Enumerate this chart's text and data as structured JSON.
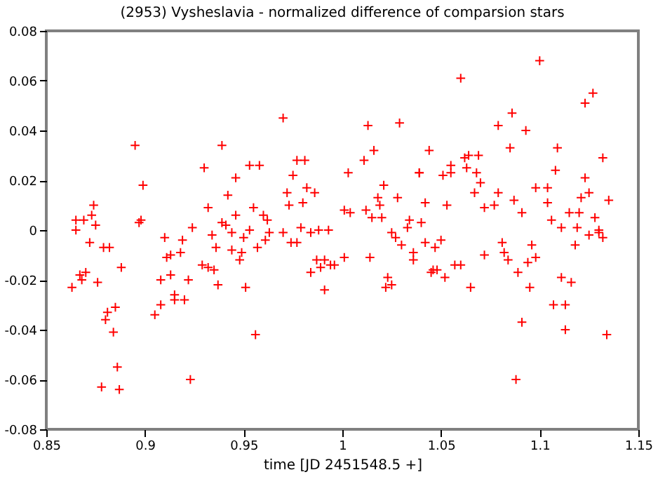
{
  "chart_data": {
    "type": "scatter",
    "title": "(2953) Vysheslavia - normalized difference of comparsion stars",
    "xlabel": "time [JD 2451548.5 +]",
    "x": [
      0.863,
      0.865,
      0.865,
      0.869,
      0.873,
      0.874,
      0.875,
      0.872,
      0.867,
      0.868,
      0.87,
      0.876,
      0.879,
      0.882,
      0.888,
      0.881,
      0.88,
      0.885,
      0.884,
      0.886,
      0.878,
      0.887,
      0.895,
      0.899,
      0.897,
      0.898,
      0.905,
      0.908,
      0.908,
      0.91,
      0.911,
      0.913,
      0.913,
      0.915,
      0.915,
      0.92,
      0.922,
      0.918,
      0.919,
      0.923,
      0.924,
      0.929,
      0.932,
      0.935,
      0.937,
      0.93,
      0.932,
      0.934,
      0.936,
      0.939,
      0.939,
      0.941,
      0.942,
      0.944,
      0.944,
      0.946,
      0.946,
      0.948,
      0.949,
      0.95,
      0.951,
      0.953,
      0.953,
      0.955,
      0.958,
      0.96,
      0.962,
      0.957,
      0.961,
      0.956,
      0.963,
      0.97,
      0.972,
      0.973,
      0.975,
      0.977,
      0.981,
      0.97,
      0.974,
      0.977,
      0.979,
      0.98,
      0.982,
      0.984,
      0.986,
      0.988,
      0.993,
      0.987,
      0.989,
      0.984,
      0.991,
      0.994,
      0.996,
      0.991,
      1.001,
      1.001,
      1.004,
      1.003,
      1.011,
      1.012,
      1.013,
      1.014,
      1.015,
      1.016,
      1.018,
      1.019,
      1.02,
      1.021,
      1.023,
      1.022,
      1.025,
      1.025,
      1.027,
      1.028,
      1.029,
      1.03,
      1.034,
      1.033,
      1.036,
      1.036,
      1.039,
      1.039,
      1.04,
      1.042,
      1.042,
      1.044,
      1.045,
      1.046,
      1.048,
      1.047,
      1.05,
      1.051,
      1.052,
      1.053,
      1.055,
      1.055,
      1.057,
      1.06,
      1.06,
      1.062,
      1.063,
      1.064,
      1.065,
      1.068,
      1.067,
      1.069,
      1.07,
      1.072,
      1.072,
      1.077,
      1.079,
      1.079,
      1.081,
      1.082,
      1.084,
      1.085,
      1.086,
      1.087,
      1.088,
      1.089,
      1.091,
      1.091,
      1.093,
      1.094,
      1.095,
      1.096,
      1.098,
      1.098,
      1.1,
      1.104,
      1.104,
      1.106,
      1.107,
      1.108,
      1.109,
      1.111,
      1.111,
      1.113,
      1.113,
      1.115,
      1.116,
      1.118,
      1.119,
      1.12,
      1.121,
      1.123,
      1.123,
      1.125,
      1.125,
      1.127,
      1.128,
      1.13,
      1.13,
      1.132,
      1.132,
      1.134,
      1.135
    ],
    "series": [
      {
        "color": "#ff0000",
        "values": [
          -0.023,
          0.0,
          0.004,
          0.004,
          0.006,
          0.01,
          0.002,
          -0.005,
          -0.018,
          -0.02,
          -0.017,
          -0.021,
          -0.007,
          -0.007,
          -0.015,
          -0.033,
          -0.036,
          -0.031,
          -0.041,
          -0.055,
          -0.063,
          -0.064,
          0.034,
          0.018,
          0.003,
          0.004,
          -0.034,
          -0.03,
          -0.02,
          -0.003,
          -0.011,
          -0.01,
          -0.018,
          -0.026,
          -0.028,
          -0.028,
          -0.02,
          -0.009,
          -0.004,
          -0.06,
          0.001,
          -0.014,
          -0.015,
          -0.016,
          -0.022,
          0.025,
          0.009,
          -0.002,
          -0.007,
          0.003,
          0.034,
          0.002,
          0.014,
          -0.001,
          -0.008,
          0.021,
          0.006,
          -0.012,
          -0.009,
          -0.003,
          -0.023,
          0.0,
          0.026,
          0.009,
          0.026,
          0.006,
          0.004,
          -0.007,
          -0.004,
          -0.042,
          -0.001,
          0.045,
          0.015,
          0.01,
          0.022,
          0.028,
          0.028,
          -0.001,
          -0.005,
          -0.005,
          0.001,
          0.011,
          0.017,
          -0.001,
          0.015,
          0.0,
          0.0,
          -0.012,
          -0.015,
          -0.017,
          -0.012,
          -0.014,
          -0.014,
          -0.024,
          -0.011,
          0.008,
          0.007,
          0.023,
          0.028,
          0.008,
          0.042,
          -0.011,
          0.005,
          0.032,
          0.013,
          0.01,
          0.005,
          0.018,
          -0.019,
          -0.023,
          -0.022,
          -0.001,
          -0.003,
          0.013,
          0.043,
          -0.006,
          0.004,
          0.001,
          -0.009,
          -0.012,
          0.023,
          0.023,
          0.003,
          -0.005,
          0.011,
          0.032,
          -0.017,
          -0.016,
          -0.016,
          -0.007,
          -0.004,
          0.022,
          -0.019,
          0.01,
          0.023,
          0.026,
          -0.014,
          -0.014,
          0.061,
          0.029,
          0.025,
          0.03,
          -0.023,
          0.023,
          0.015,
          0.03,
          0.019,
          -0.01,
          0.009,
          0.01,
          0.042,
          0.015,
          -0.005,
          -0.009,
          -0.012,
          0.033,
          0.047,
          0.012,
          -0.06,
          -0.017,
          -0.037,
          0.007,
          0.04,
          -0.013,
          -0.023,
          -0.006,
          0.017,
          -0.011,
          0.068,
          0.017,
          0.011,
          0.004,
          -0.03,
          0.024,
          0.033,
          -0.019,
          0.001,
          -0.03,
          -0.04,
          0.007,
          -0.021,
          -0.006,
          0.001,
          0.007,
          0.013,
          0.051,
          0.021,
          -0.002,
          0.015,
          0.055,
          0.005,
          -0.001,
          0.0,
          0.029,
          -0.003,
          -0.042,
          0.012
        ]
      }
    ],
    "xlim": [
      0.85,
      1.15
    ],
    "xticks": [
      0.85,
      0.9,
      0.95,
      1,
      1.05,
      1.1,
      1.15
    ],
    "ylim": [
      -0.08,
      0.08
    ],
    "yticks": [
      -0.08,
      -0.06,
      -0.04,
      -0.02,
      0,
      0.02,
      0.04,
      0.06,
      0.08
    ],
    "marker": "cross",
    "grid": false
  }
}
